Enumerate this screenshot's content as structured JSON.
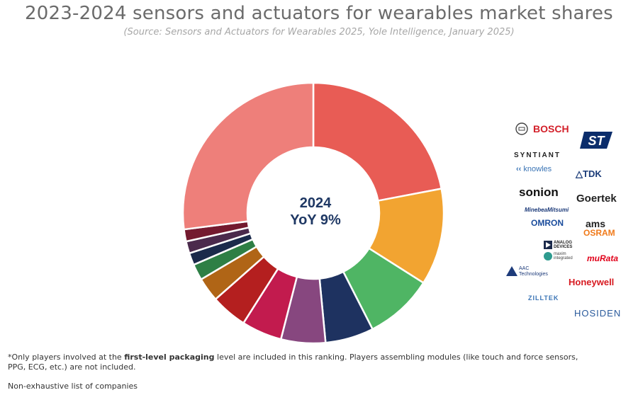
{
  "header": {
    "title": "2023-2024 sensors and actuators for wearables market shares",
    "subtitle": "(Source: Sensors and Actuators for Wearables 2025, Yole Intelligence, January 2025)"
  },
  "chart_data": {
    "type": "pie",
    "variant": "donut",
    "center_label": [
      "2024",
      "YoY 9%"
    ],
    "slices": [
      {
        "value": 22.0,
        "color": "#e85c55"
      },
      {
        "value": 12.0,
        "color": "#f2a431"
      },
      {
        "value": 8.5,
        "color": "#4fb564"
      },
      {
        "value": 6.0,
        "color": "#1e3260"
      },
      {
        "value": 5.5,
        "color": "#87477f"
      },
      {
        "value": 5.0,
        "color": "#c21b4e"
      },
      {
        "value": 4.5,
        "color": "#b41f1f"
      },
      {
        "value": 3.0,
        "color": "#b06516"
      },
      {
        "value": 2.0,
        "color": "#2e7f45"
      },
      {
        "value": 1.5,
        "color": "#1b2a4b"
      },
      {
        "value": 1.5,
        "color": "#4b2a4c"
      },
      {
        "value": 1.5,
        "color": "#741a2f"
      },
      {
        "value": 27.0,
        "color": "#ee7f7a"
      }
    ]
  },
  "logos": {
    "bosch": "BOSCH",
    "st": "ST",
    "syntiant": "SYNTIANT",
    "knowles": "knowles",
    "tdk": "TDK",
    "sonion": "sonion",
    "goertek": "Goertek",
    "minebea": "MinebeaMitsumi",
    "omron": "OMRON",
    "ams": "ams",
    "osram": "OSRAM",
    "analog_devices": [
      "ANALOG",
      "DEVICES"
    ],
    "maxim": [
      "maxim",
      "integrated"
    ],
    "aac": [
      "AAC",
      "Technologies"
    ],
    "murata": "muRata",
    "honeywell": "Honeywell",
    "zilltek": "ZILLTEK",
    "hosiden": "HOSIDEN"
  },
  "footnote": {
    "prefix": "*Only players involved at the ",
    "bold": "first-level packaging",
    "suffix": " level are included in this ranking. Players assembling modules (like touch and force sensors, PPG, ECG, etc.) are not included.",
    "non_exhaustive": "Non-exhaustive list of companies"
  },
  "colors": {
    "title": "#6b6b6b",
    "center_text": "#1f3864",
    "bosch": "#d3202a",
    "st": "#0b2d6b",
    "osram": "#f07a1a",
    "murata": "#e10019",
    "honeywell": "#d71920"
  }
}
